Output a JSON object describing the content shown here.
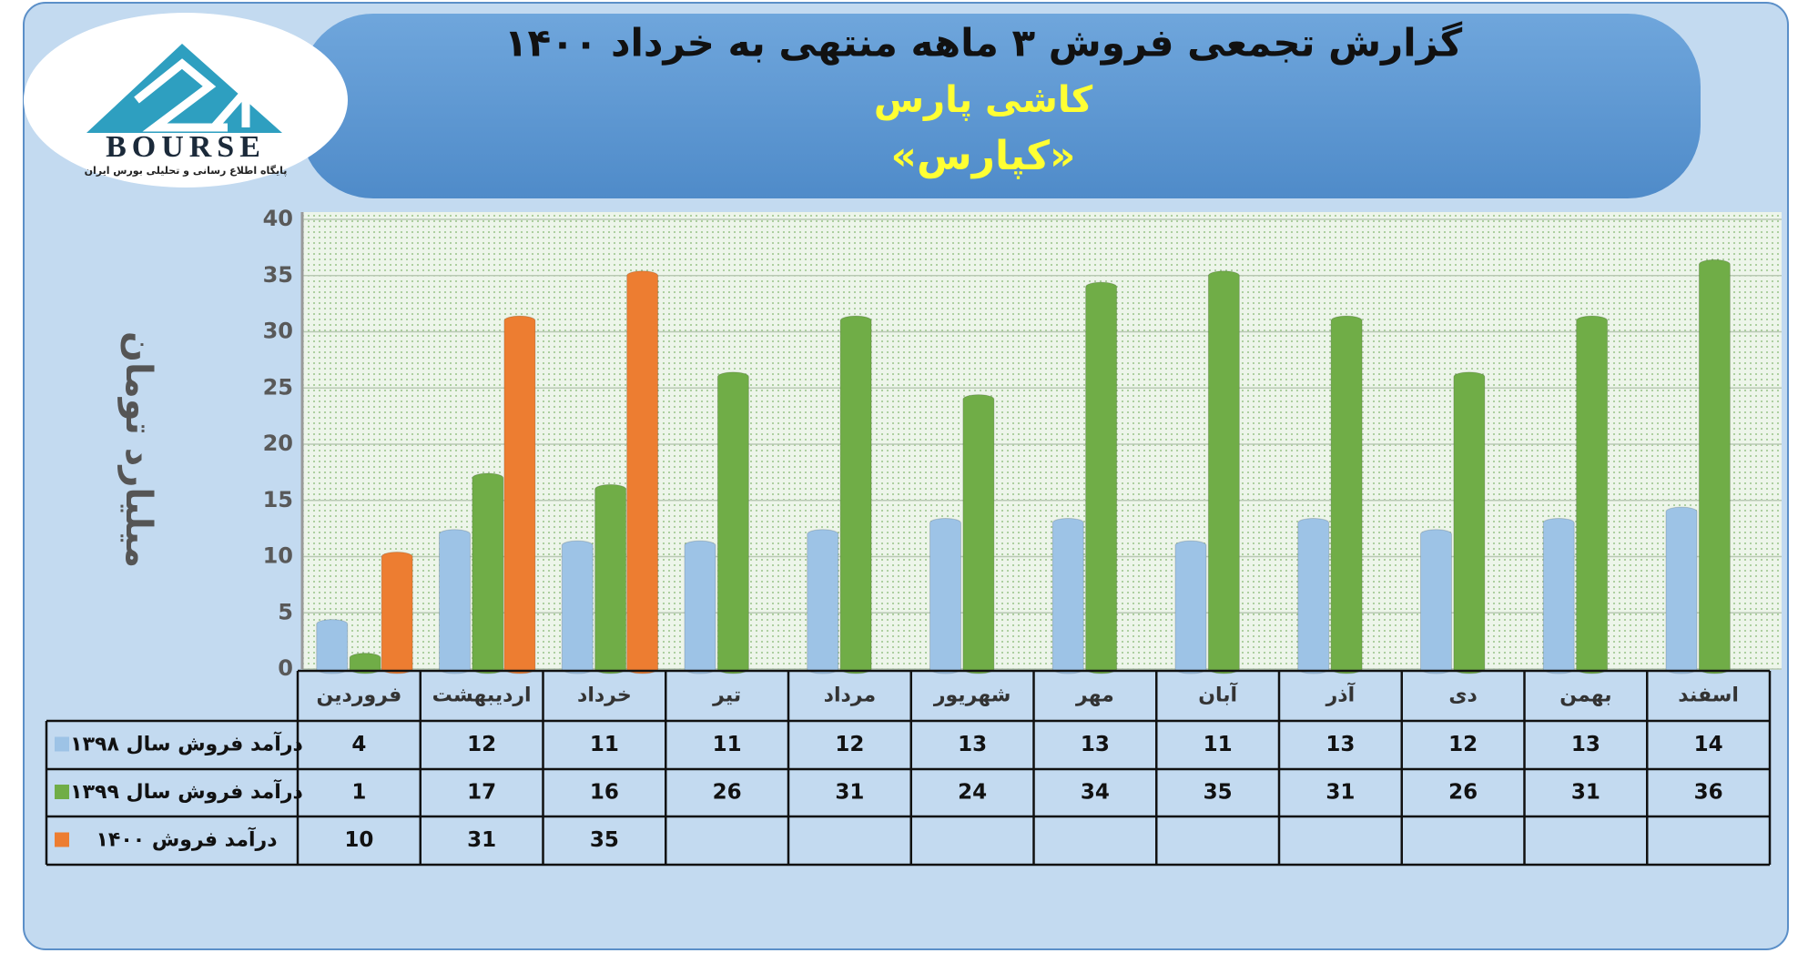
{
  "logo": {
    "name": "BOURSE",
    "tagline": "پایگاه اطلاع رسانی و تحلیلی بورس ایران"
  },
  "chart_data": {
    "type": "bar",
    "title": "گزارش تجمعی فروش ۳ ماهه منتهی به خرداد ۱۴۰۰",
    "subtitle": "کاشی پارس",
    "symbol": "«کپارس»",
    "y_label": "میلیارد تومان",
    "categories": [
      "فروردین",
      "اردیبهشت",
      "خرداد",
      "تیر",
      "مرداد",
      "شهریور",
      "مهر",
      "آبان",
      "آذر",
      "دی",
      "بهمن",
      "اسفند"
    ],
    "series": [
      {
        "name": "درآمد فروش سال ۱۳۹۸",
        "color": "#9dc3e6",
        "values": [
          4,
          12,
          11,
          11,
          12,
          13,
          13,
          11,
          13,
          12,
          13,
          14
        ]
      },
      {
        "name": "درآمد فروش سال ۱۳۹۹",
        "color": "#70ad47",
        "values": [
          1,
          17,
          16,
          26,
          31,
          24,
          34,
          35,
          31,
          26,
          31,
          36
        ]
      },
      {
        "name": "درآمد فروش ۱۴۰۰",
        "color": "#ed7d31",
        "values": [
          10,
          31,
          35,
          null,
          null,
          null,
          null,
          null,
          null,
          null,
          null,
          null
        ]
      }
    ],
    "ylim": [
      0,
      40
    ],
    "yticks": [
      0,
      5,
      10,
      15,
      20,
      25,
      30,
      35,
      40
    ],
    "grid": true
  }
}
